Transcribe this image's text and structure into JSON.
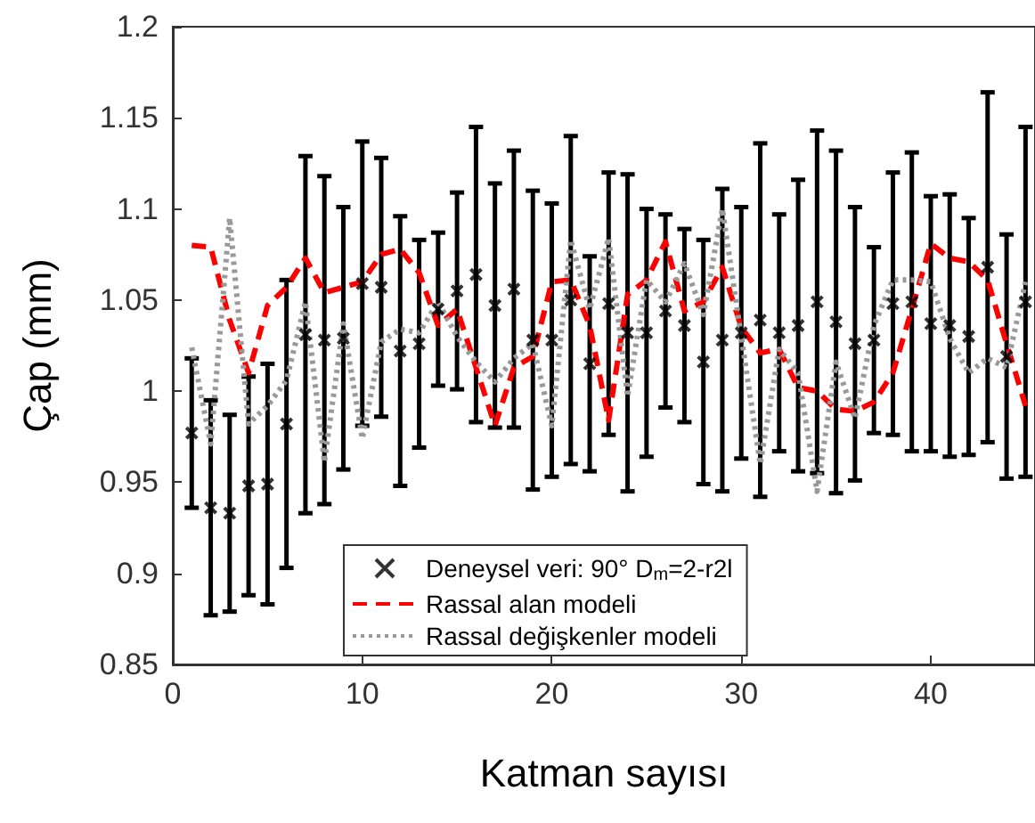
{
  "chart_data": {
    "type": "scatter",
    "xlabel": "Katman sayısı",
    "ylabel": "Çap (mm)",
    "x": [
      1,
      2,
      3,
      4,
      5,
      6,
      7,
      8,
      9,
      10,
      11,
      12,
      13,
      14,
      15,
      16,
      17,
      18,
      19,
      20,
      21,
      22,
      23,
      24,
      25,
      26,
      27,
      28,
      29,
      30,
      31,
      32,
      33,
      34,
      35,
      36,
      37,
      38,
      39,
      40,
      41,
      42,
      43,
      44,
      45
    ],
    "series": [
      {
        "name": "Deneysel veri: 90° D$_{m}$=2-r2l",
        "color": "#000000",
        "marker": "cross",
        "values": [
          0.977,
          0.936,
          0.933,
          0.948,
          0.949,
          0.982,
          1.031,
          1.028,
          1.029,
          1.059,
          1.057,
          1.022,
          1.026,
          1.045,
          1.055,
          1.064,
          1.047,
          1.056,
          1.028,
          1.028,
          1.05,
          1.015,
          1.048,
          1.032,
          1.032,
          1.044,
          1.036,
          1.016,
          1.028,
          1.032,
          1.039,
          1.032,
          1.036,
          1.049,
          1.038,
          1.026,
          1.028,
          1.048,
          1.049,
          1.037,
          1.036,
          1.03,
          1.068,
          1.019,
          1.049
        ],
        "errors": [
          0.041,
          0.059,
          0.054,
          0.06,
          0.066,
          0.079,
          0.098,
          0.09,
          0.072,
          0.078,
          0.071,
          0.074,
          0.057,
          0.042,
          0.054,
          0.081,
          0.067,
          0.076,
          0.082,
          0.075,
          0.09,
          0.059,
          0.072,
          0.087,
          0.068,
          0.053,
          0.053,
          0.067,
          0.083,
          0.069,
          0.097,
          0.065,
          0.08,
          0.094,
          0.094,
          0.075,
          0.051,
          0.072,
          0.082,
          0.07,
          0.072,
          0.065,
          0.096,
          0.067,
          0.096
        ]
      },
      {
        "type": "line",
        "name": "Rassal alan modeli",
        "color": "#ff0000",
        "line_style": "dashed",
        "values": [
          1.08,
          1.079,
          1.039,
          1.01,
          1.047,
          1.057,
          1.073,
          1.054,
          1.057,
          1.06,
          1.075,
          1.078,
          1.065,
          1.036,
          1.045,
          1.013,
          0.981,
          1.013,
          1.019,
          1.06,
          1.061,
          1.036,
          0.984,
          1.053,
          1.061,
          1.082,
          1.044,
          1.049,
          1.068,
          1.035,
          1.021,
          1.023,
          1.002,
          1.0,
          0.99,
          0.989,
          0.994,
          1.01,
          1.045,
          1.081,
          1.073,
          1.071,
          1.061,
          1.026,
          0.992
        ]
      },
      {
        "type": "line",
        "name": "Rassal değişkenler modeli",
        "color": "#999999",
        "line_style": "dotted",
        "values": [
          1.024,
          0.971,
          1.095,
          0.982,
          0.992,
          1.006,
          1.049,
          0.961,
          1.037,
          0.974,
          1.027,
          1.034,
          1.032,
          1.049,
          1.03,
          1.016,
          1.005,
          1.018,
          1.026,
          0.981,
          1.083,
          1.045,
          1.084,
          0.997,
          1.061,
          1.049,
          1.07,
          1.042,
          1.1,
          1.03,
          0.96,
          1.023,
          1.01,
          0.945,
          1.016,
          0.985,
          1.036,
          1.061,
          1.061,
          1.06,
          1.029,
          1.01,
          1.018,
          1.013,
          1.06
        ]
      }
    ],
    "xlim": [
      0,
      45.5
    ],
    "xticks": [
      0,
      10,
      20,
      30,
      40
    ],
    "ylim": [
      0.85,
      1.2
    ],
    "yticks": [
      0.85,
      0.9,
      0.95,
      1,
      1.05,
      1.1,
      1.15,
      1.2
    ],
    "grid": false,
    "legend": "bottom"
  }
}
